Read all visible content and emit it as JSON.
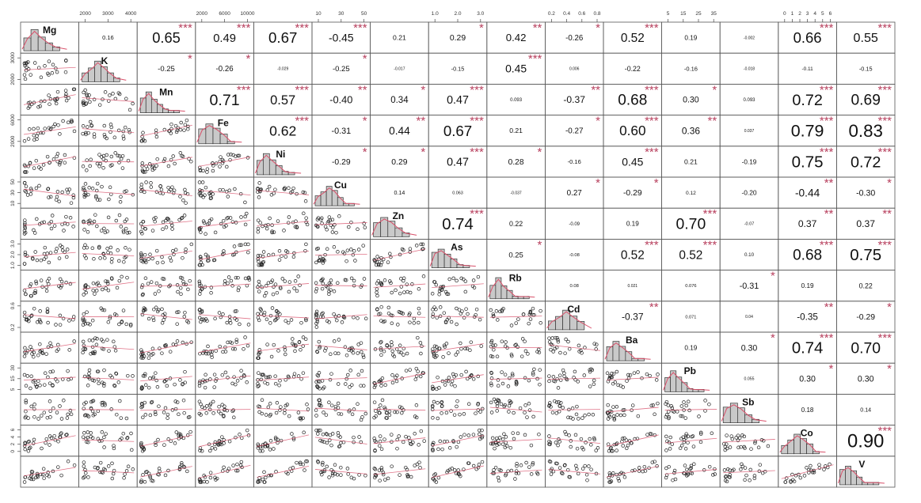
{
  "chart_data": {
    "type": "scatter",
    "variables": [
      "Mg",
      "K",
      "Mn",
      "Fe",
      "Ni",
      "Cu",
      "Zn",
      "As",
      "Rb",
      "Cd",
      "Ba",
      "Pb",
      "Sb",
      "Co",
      "V"
    ],
    "top_axis_ticks": [
      {
        "col": 1,
        "labels": [
          "2000",
          "3000",
          "4000"
        ]
      },
      {
        "col": 3,
        "labels": [
          "2000",
          "6000",
          "10000"
        ]
      },
      {
        "col": 5,
        "labels": [
          "10",
          "30",
          "50"
        ]
      },
      {
        "col": 7,
        "labels": [
          "1.0",
          "2.0",
          "3.0"
        ]
      },
      {
        "col": 9,
        "labels": [
          "0.2",
          "0.4",
          "0.6",
          "0.8"
        ]
      },
      {
        "col": 11,
        "labels": [
          "5",
          "15",
          "25",
          "35"
        ]
      },
      {
        "col": 13,
        "labels": [
          "0",
          "1",
          "2",
          "3",
          "4",
          "5",
          "6"
        ]
      }
    ],
    "left_axis_ticks": [
      {
        "row": 1,
        "labels": [
          "2000",
          "3000"
        ]
      },
      {
        "row": 3,
        "labels": [
          "2000",
          "6000"
        ]
      },
      {
        "row": 5,
        "labels": [
          "10",
          "30",
          "50"
        ]
      },
      {
        "row": 7,
        "labels": [
          "1.0",
          "2.0",
          "3.0"
        ]
      },
      {
        "row": 9,
        "labels": [
          "0.2",
          "0.6"
        ]
      },
      {
        "row": 11,
        "labels": [
          "5",
          "15",
          "30"
        ]
      },
      {
        "row": 13,
        "labels": [
          "0",
          "2",
          "4",
          "6"
        ]
      }
    ],
    "correlations": [
      {
        "r": 0,
        "c": 1,
        "v": "0.16",
        "s": ""
      },
      {
        "r": 0,
        "c": 2,
        "v": "0.65",
        "s": "***"
      },
      {
        "r": 0,
        "c": 3,
        "v": "0.49",
        "s": "***"
      },
      {
        "r": 0,
        "c": 4,
        "v": "0.67",
        "s": "***"
      },
      {
        "r": 0,
        "c": 5,
        "v": "-0.45",
        "s": "***"
      },
      {
        "r": 0,
        "c": 6,
        "v": "0.21",
        "s": ""
      },
      {
        "r": 0,
        "c": 7,
        "v": "0.29",
        "s": "*"
      },
      {
        "r": 0,
        "c": 8,
        "v": "0.42",
        "s": "**"
      },
      {
        "r": 0,
        "c": 9,
        "v": "-0.26",
        "s": "*"
      },
      {
        "r": 0,
        "c": 10,
        "v": "0.52",
        "s": "***"
      },
      {
        "r": 0,
        "c": 11,
        "v": "0.19",
        "s": ""
      },
      {
        "r": 0,
        "c": 12,
        "v": "-0.002",
        "s": ""
      },
      {
        "r": 0,
        "c": 13,
        "v": "0.66",
        "s": "***"
      },
      {
        "r": 0,
        "c": 14,
        "v": "0.55",
        "s": "***"
      },
      {
        "r": 1,
        "c": 2,
        "v": "-0.25",
        "s": "*"
      },
      {
        "r": 1,
        "c": 3,
        "v": "-0.26",
        "s": "*"
      },
      {
        "r": 1,
        "c": 4,
        "v": "-0.029",
        "s": ""
      },
      {
        "r": 1,
        "c": 5,
        "v": "-0.25",
        "s": "*"
      },
      {
        "r": 1,
        "c": 6,
        "v": "-0.017",
        "s": ""
      },
      {
        "r": 1,
        "c": 7,
        "v": "-0.15",
        "s": ""
      },
      {
        "r": 1,
        "c": 8,
        "v": "0.45",
        "s": "***"
      },
      {
        "r": 1,
        "c": 9,
        "v": "0.006",
        "s": ""
      },
      {
        "r": 1,
        "c": 10,
        "v": "-0.22",
        "s": ""
      },
      {
        "r": 1,
        "c": 11,
        "v": "-0.16",
        "s": ""
      },
      {
        "r": 1,
        "c": 12,
        "v": "-0.018",
        "s": ""
      },
      {
        "r": 1,
        "c": 13,
        "v": "-0.11",
        "s": ""
      },
      {
        "r": 1,
        "c": 14,
        "v": "-0.15",
        "s": ""
      },
      {
        "r": 2,
        "c": 3,
        "v": "0.71",
        "s": "***"
      },
      {
        "r": 2,
        "c": 4,
        "v": "0.57",
        "s": "***"
      },
      {
        "r": 2,
        "c": 5,
        "v": "-0.40",
        "s": "**"
      },
      {
        "r": 2,
        "c": 6,
        "v": "0.34",
        "s": "*"
      },
      {
        "r": 2,
        "c": 7,
        "v": "0.47",
        "s": "***"
      },
      {
        "r": 2,
        "c": 8,
        "v": "0.093",
        "s": ""
      },
      {
        "r": 2,
        "c": 9,
        "v": "-0.37",
        "s": "**"
      },
      {
        "r": 2,
        "c": 10,
        "v": "0.68",
        "s": "***"
      },
      {
        "r": 2,
        "c": 11,
        "v": "0.30",
        "s": "*"
      },
      {
        "r": 2,
        "c": 12,
        "v": "0.093",
        "s": ""
      },
      {
        "r": 2,
        "c": 13,
        "v": "0.72",
        "s": "***"
      },
      {
        "r": 2,
        "c": 14,
        "v": "0.69",
        "s": "***"
      },
      {
        "r": 3,
        "c": 4,
        "v": "0.62",
        "s": "***"
      },
      {
        "r": 3,
        "c": 5,
        "v": "-0.31",
        "s": "*"
      },
      {
        "r": 3,
        "c": 6,
        "v": "0.44",
        "s": "**"
      },
      {
        "r": 3,
        "c": 7,
        "v": "0.67",
        "s": "***"
      },
      {
        "r": 3,
        "c": 8,
        "v": "0.21",
        "s": ""
      },
      {
        "r": 3,
        "c": 9,
        "v": "-0.27",
        "s": "*"
      },
      {
        "r": 3,
        "c": 10,
        "v": "0.60",
        "s": "***"
      },
      {
        "r": 3,
        "c": 11,
        "v": "0.36",
        "s": "**"
      },
      {
        "r": 3,
        "c": 12,
        "v": "0.037",
        "s": ""
      },
      {
        "r": 3,
        "c": 13,
        "v": "0.79",
        "s": "***"
      },
      {
        "r": 3,
        "c": 14,
        "v": "0.83",
        "s": "***"
      },
      {
        "r": 4,
        "c": 5,
        "v": "-0.29",
        "s": "*"
      },
      {
        "r": 4,
        "c": 6,
        "v": "0.29",
        "s": "*"
      },
      {
        "r": 4,
        "c": 7,
        "v": "0.47",
        "s": "***"
      },
      {
        "r": 4,
        "c": 8,
        "v": "0.28",
        "s": "*"
      },
      {
        "r": 4,
        "c": 9,
        "v": "-0.16",
        "s": ""
      },
      {
        "r": 4,
        "c": 10,
        "v": "0.45",
        "s": "***"
      },
      {
        "r": 4,
        "c": 11,
        "v": "0.21",
        "s": ""
      },
      {
        "r": 4,
        "c": 12,
        "v": "-0.19",
        "s": ""
      },
      {
        "r": 4,
        "c": 13,
        "v": "0.75",
        "s": "***"
      },
      {
        "r": 4,
        "c": 14,
        "v": "0.72",
        "s": "***"
      },
      {
        "r": 5,
        "c": 6,
        "v": "0.14",
        "s": ""
      },
      {
        "r": 5,
        "c": 7,
        "v": "0.063",
        "s": ""
      },
      {
        "r": 5,
        "c": 8,
        "v": "-0.037",
        "s": ""
      },
      {
        "r": 5,
        "c": 9,
        "v": "0.27",
        "s": "*"
      },
      {
        "r": 5,
        "c": 10,
        "v": "-0.29",
        "s": "*"
      },
      {
        "r": 5,
        "c": 11,
        "v": "0.12",
        "s": ""
      },
      {
        "r": 5,
        "c": 12,
        "v": "-0.20",
        "s": ""
      },
      {
        "r": 5,
        "c": 13,
        "v": "-0.44",
        "s": "**"
      },
      {
        "r": 5,
        "c": 14,
        "v": "-0.30",
        "s": "*"
      },
      {
        "r": 6,
        "c": 7,
        "v": "0.74",
        "s": "***"
      },
      {
        "r": 6,
        "c": 8,
        "v": "0.22",
        "s": ""
      },
      {
        "r": 6,
        "c": 9,
        "v": "-0.09",
        "s": ""
      },
      {
        "r": 6,
        "c": 10,
        "v": "0.19",
        "s": ""
      },
      {
        "r": 6,
        "c": 11,
        "v": "0.70",
        "s": "***"
      },
      {
        "r": 6,
        "c": 12,
        "v": "-0.07",
        "s": ""
      },
      {
        "r": 6,
        "c": 13,
        "v": "0.37",
        "s": "**"
      },
      {
        "r": 6,
        "c": 14,
        "v": "0.37",
        "s": "**"
      },
      {
        "r": 7,
        "c": 8,
        "v": "0.25",
        "s": "*"
      },
      {
        "r": 7,
        "c": 9,
        "v": "-0.08",
        "s": ""
      },
      {
        "r": 7,
        "c": 10,
        "v": "0.52",
        "s": "***"
      },
      {
        "r": 7,
        "c": 11,
        "v": "0.52",
        "s": "***"
      },
      {
        "r": 7,
        "c": 12,
        "v": "0.10",
        "s": ""
      },
      {
        "r": 7,
        "c": 13,
        "v": "0.68",
        "s": "***"
      },
      {
        "r": 7,
        "c": 14,
        "v": "0.75",
        "s": "***"
      },
      {
        "r": 8,
        "c": 9,
        "v": "0.08",
        "s": ""
      },
      {
        "r": 8,
        "c": 10,
        "v": "0.021",
        "s": ""
      },
      {
        "r": 8,
        "c": 11,
        "v": "0.076",
        "s": ""
      },
      {
        "r": 8,
        "c": 12,
        "v": "-0.31",
        "s": "*"
      },
      {
        "r": 8,
        "c": 13,
        "v": "0.19",
        "s": ""
      },
      {
        "r": 8,
        "c": 14,
        "v": "0.22",
        "s": ""
      },
      {
        "r": 9,
        "c": 10,
        "v": "-0.37",
        "s": "**"
      },
      {
        "r": 9,
        "c": 11,
        "v": "0.071",
        "s": ""
      },
      {
        "r": 9,
        "c": 12,
        "v": "0.04",
        "s": ""
      },
      {
        "r": 9,
        "c": 13,
        "v": "-0.35",
        "s": "**"
      },
      {
        "r": 9,
        "c": 14,
        "v": "-0.29",
        "s": "*"
      },
      {
        "r": 10,
        "c": 11,
        "v": "0.19",
        "s": ""
      },
      {
        "r": 10,
        "c": 12,
        "v": "0.30",
        "s": "*"
      },
      {
        "r": 10,
        "c": 13,
        "v": "0.74",
        "s": "***"
      },
      {
        "r": 10,
        "c": 14,
        "v": "0.70",
        "s": "***"
      },
      {
        "r": 11,
        "c": 12,
        "v": "0.055",
        "s": ""
      },
      {
        "r": 11,
        "c": 13,
        "v": "0.30",
        "s": "*"
      },
      {
        "r": 11,
        "c": 14,
        "v": "0.30",
        "s": "*"
      },
      {
        "r": 12,
        "c": 13,
        "v": "0.18",
        "s": ""
      },
      {
        "r": 12,
        "c": 14,
        "v": "0.14",
        "s": ""
      },
      {
        "r": 13,
        "c": 14,
        "v": "0.90",
        "s": "***"
      }
    ],
    "colors": {
      "hist_fill": "#c9c9c9",
      "density_line": "#d9506a",
      "star": "#b8405e",
      "points": "#222222",
      "border": "#555555"
    }
  }
}
